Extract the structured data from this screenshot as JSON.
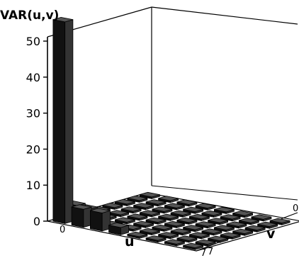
{
  "chart_data": {
    "type": "bar3d",
    "title": "",
    "zlabel": "VAR(u,v)",
    "xlabel": "u",
    "ylabel": "v",
    "zlim": [
      0,
      50
    ],
    "z_ticks": [
      "0",
      "10",
      "20",
      "30",
      "40",
      "50"
    ],
    "x_range": [
      0,
      7
    ],
    "y_range": [
      0,
      7
    ],
    "x_tick_labels": [
      "0",
      "7"
    ],
    "y_tick_labels": [
      "0",
      "7"
    ],
    "bars": [
      {
        "u": 0,
        "v": 0,
        "value": 56
      },
      {
        "u": 1,
        "v": 0,
        "value": 5
      },
      {
        "u": 2,
        "v": 0,
        "value": 5
      },
      {
        "u": 3,
        "v": 0,
        "value": 2
      },
      {
        "u": 0,
        "v": 1,
        "value": 4
      },
      {
        "u": 0,
        "v": 2,
        "value": 2
      },
      {
        "u": 1,
        "v": 1,
        "value": 1.5
      }
    ],
    "base_value": 0.5,
    "bar_color": "#111111"
  }
}
